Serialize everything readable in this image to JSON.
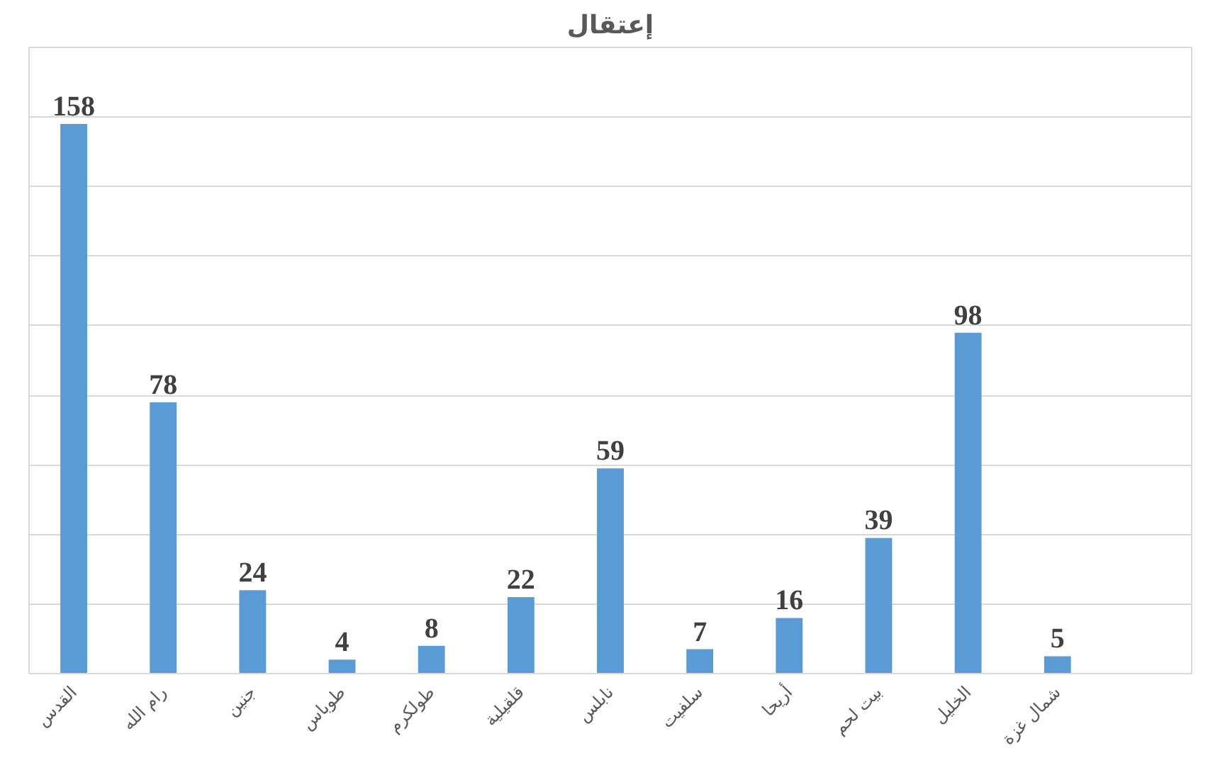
{
  "chart_data": {
    "type": "bar",
    "title": "إعتقال",
    "categories": [
      "القدس",
      "رام الله",
      "جنين",
      "طوباس",
      "طولكرم",
      "قلقيلية",
      "نابلس",
      "سلفيت",
      "أريحا",
      "بيت لحم",
      "الخليل",
      "شمال غزة",
      null
    ],
    "values": [
      158,
      78,
      24,
      4,
      8,
      22,
      59,
      7,
      16,
      39,
      98,
      5,
      null
    ],
    "color": "#5b9bd5",
    "data_labels": true,
    "grid": "y",
    "tick_labels": "x",
    "ylim": [
      0,
      180
    ],
    "yticks": [
      {
        "value": 0,
        "label": null
      },
      {
        "value": 20,
        "label": null
      },
      {
        "value": 40,
        "label": null
      },
      {
        "value": 60,
        "label": null
      },
      {
        "value": 80,
        "label": null
      },
      {
        "value": 100,
        "label": null
      },
      {
        "value": 120,
        "label": null
      },
      {
        "value": 140,
        "label": null
      },
      {
        "value": 160,
        "label": null
      },
      {
        "value": 180,
        "label": null
      }
    ]
  }
}
